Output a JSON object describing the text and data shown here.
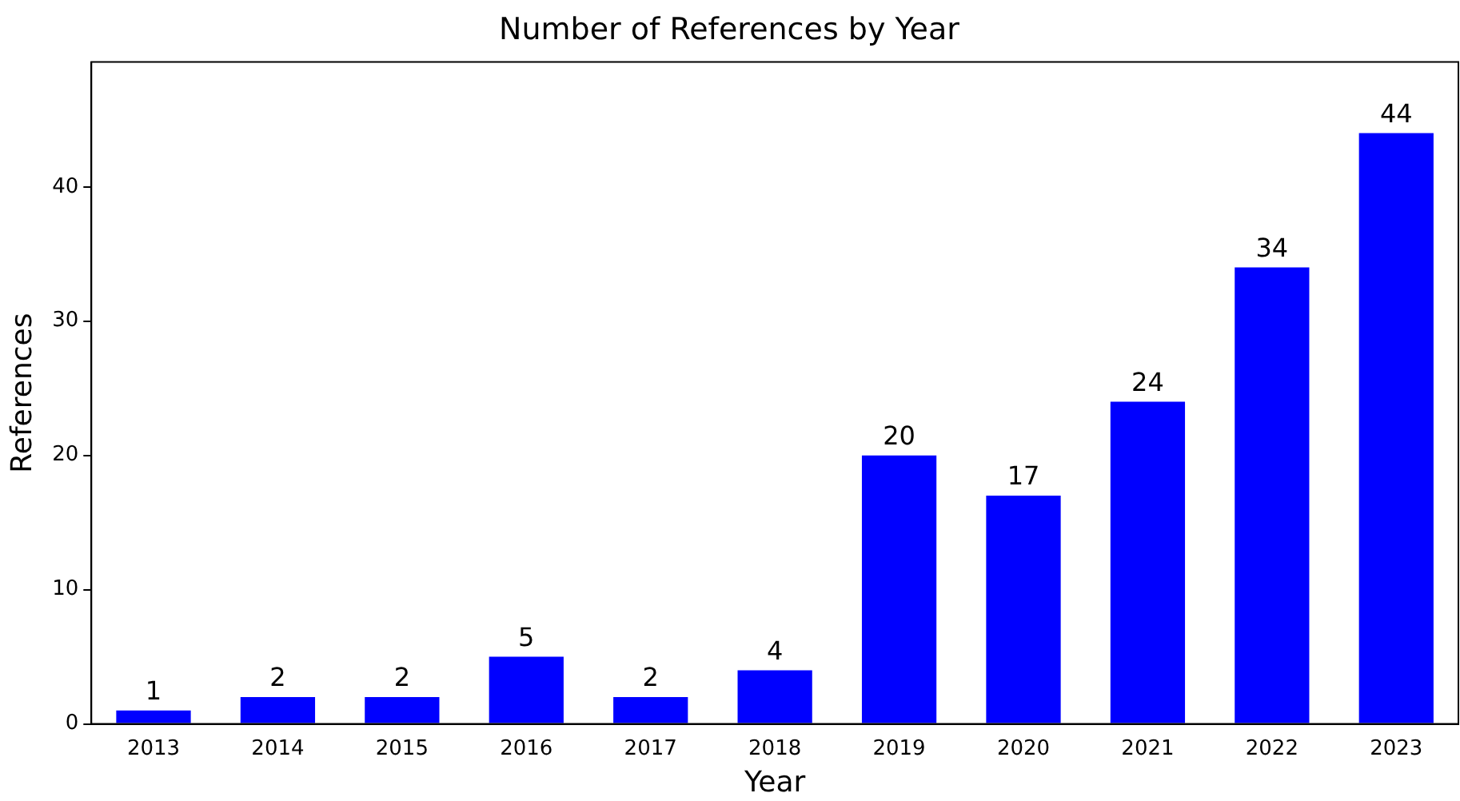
{
  "chart_data": {
    "type": "bar",
    "title": "Number of References by Year",
    "xlabel": "Year",
    "ylabel": "References",
    "categories": [
      "2013",
      "2014",
      "2015",
      "2016",
      "2017",
      "2018",
      "2019",
      "2020",
      "2021",
      "2022",
      "2023"
    ],
    "values": [
      1,
      2,
      2,
      5,
      2,
      4,
      20,
      17,
      24,
      34,
      44
    ],
    "color": "#0000ff",
    "ylim": [
      0,
      49.3
    ],
    "yticks": [
      0,
      10,
      20,
      30,
      40
    ],
    "data_labels": true,
    "grid": false,
    "legend": false
  }
}
